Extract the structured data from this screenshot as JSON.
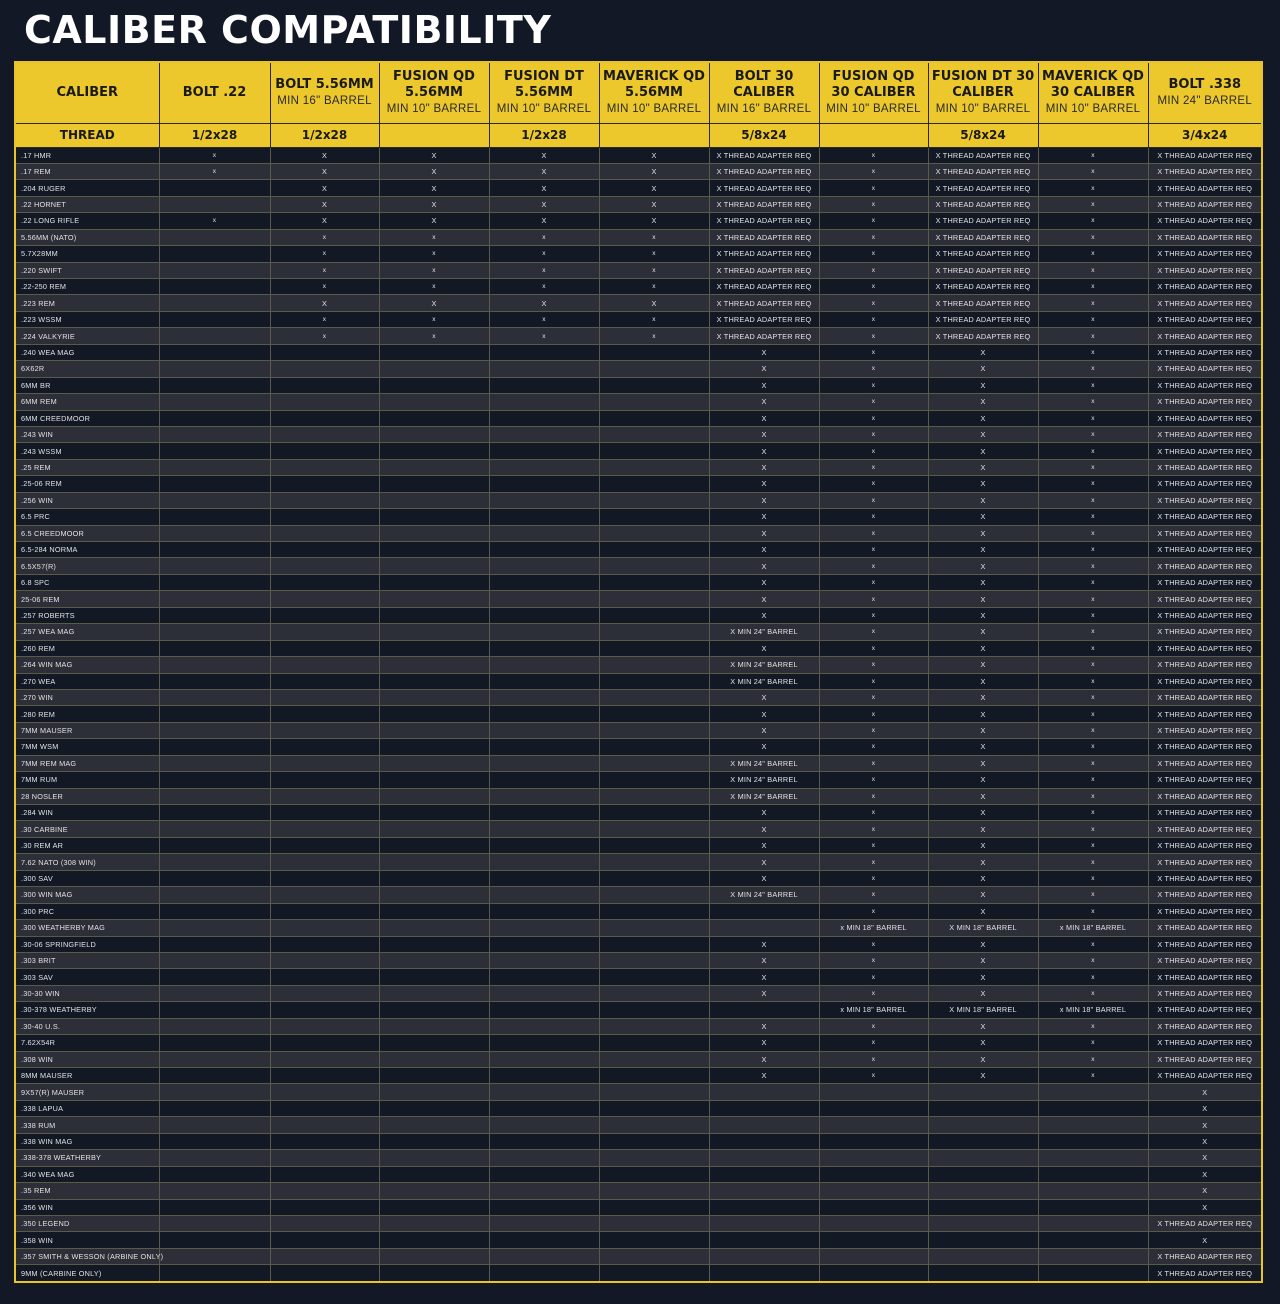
{
  "title": "CALIBER COMPATIBILITY",
  "table": {
    "columns": [
      {
        "name": "CALIBER",
        "sub": ""
      },
      {
        "name": "BOLT .22",
        "sub": ""
      },
      {
        "name": "BOLT 5.56MM",
        "sub": "MIN 16\" BARREL"
      },
      {
        "name": "FUSION QD 5.56MM",
        "sub": "MIN 10\" BARREL"
      },
      {
        "name": "FUSION DT 5.56MM",
        "sub": "MIN 10\" BARREL"
      },
      {
        "name": "MAVERICK QD 5.56MM",
        "sub": "MIN 10\" BARREL"
      },
      {
        "name": "BOLT 30 CALIBER",
        "sub": "MIN 16\" BARREL"
      },
      {
        "name": "FUSION QD 30 CALIBER",
        "sub": "MIN 10\" BARREL"
      },
      {
        "name": "FUSION DT 30 CALIBER",
        "sub": "MIN 10\" BARREL"
      },
      {
        "name": "MAVERICK QD 30 CALIBER",
        "sub": "MIN 10\" BARREL"
      },
      {
        "name": "BOLT .338",
        "sub": "MIN 24\" BARREL"
      }
    ],
    "thread_row": [
      "THREAD",
      "1/2x28",
      "1/2x28",
      "",
      "1/2x28",
      "",
      "5/8x24",
      "",
      "5/8x24",
      "",
      "3/4x24"
    ],
    "rows": [
      [
        ".17 HMR",
        "x",
        "X",
        "X",
        "X",
        "X",
        "X THREAD ADAPTER REQ",
        "x",
        "X THREAD ADAPTER REQ",
        "x",
        "X THREAD ADAPTER REQ"
      ],
      [
        ".17 REM",
        "x",
        "X",
        "X",
        "X",
        "X",
        "X THREAD ADAPTER REQ",
        "x",
        "X THREAD ADAPTER REQ",
        "x",
        "X THREAD ADAPTER REQ"
      ],
      [
        ".204 RUGER",
        "",
        "X",
        "X",
        "X",
        "X",
        "X THREAD ADAPTER REQ",
        "x",
        "X THREAD ADAPTER REQ",
        "x",
        "X THREAD ADAPTER REQ"
      ],
      [
        ".22 HORNET",
        "",
        "X",
        "X",
        "X",
        "X",
        "X THREAD ADAPTER REQ",
        "x",
        "X THREAD ADAPTER REQ",
        "x",
        "X THREAD ADAPTER REQ"
      ],
      [
        ".22 LONG RIFLE",
        "x",
        "X",
        "X",
        "X",
        "X",
        "X THREAD ADAPTER REQ",
        "x",
        "X THREAD ADAPTER REQ",
        "x",
        "X THREAD ADAPTER REQ"
      ],
      [
        "5.56MM (NATO)",
        "",
        "x",
        "x",
        "x",
        "x",
        "X THREAD ADAPTER REQ",
        "x",
        "X THREAD ADAPTER REQ",
        "x",
        "X THREAD ADAPTER REQ"
      ],
      [
        "5.7X28MM",
        "",
        "x",
        "x",
        "x",
        "x",
        "X THREAD ADAPTER REQ",
        "x",
        "X THREAD ADAPTER REQ",
        "x",
        "X THREAD ADAPTER REQ"
      ],
      [
        ".220 SWIFT",
        "",
        "x",
        "x",
        "x",
        "x",
        "X THREAD ADAPTER REQ",
        "x",
        "X THREAD ADAPTER REQ",
        "x",
        "X THREAD ADAPTER REQ"
      ],
      [
        ".22-250 REM",
        "",
        "x",
        "x",
        "x",
        "x",
        "X THREAD ADAPTER REQ",
        "x",
        "X THREAD ADAPTER REQ",
        "x",
        "X THREAD ADAPTER REQ"
      ],
      [
        ".223 REM",
        "",
        "X",
        "X",
        "X",
        "X",
        "X THREAD ADAPTER REQ",
        "x",
        "X THREAD ADAPTER REQ",
        "x",
        "X THREAD ADAPTER REQ"
      ],
      [
        ".223 WSSM",
        "",
        "x",
        "x",
        "x",
        "x",
        "X THREAD ADAPTER REQ",
        "x",
        "X THREAD ADAPTER REQ",
        "x",
        "X THREAD ADAPTER REQ"
      ],
      [
        ".224 VALKYRIE",
        "",
        "x",
        "x",
        "x",
        "x",
        "X THREAD ADAPTER REQ",
        "x",
        "X THREAD ADAPTER REQ",
        "x",
        "X THREAD ADAPTER REQ"
      ],
      [
        ".240 WEA MAG",
        "",
        "",
        "",
        "",
        "",
        "X",
        "x",
        "X",
        "x",
        "X THREAD ADAPTER REQ"
      ],
      [
        "6X62R",
        "",
        "",
        "",
        "",
        "",
        "X",
        "x",
        "X",
        "x",
        "X THREAD ADAPTER REQ"
      ],
      [
        "6MM BR",
        "",
        "",
        "",
        "",
        "",
        "X",
        "x",
        "X",
        "x",
        "X THREAD ADAPTER REQ"
      ],
      [
        "6MM REM",
        "",
        "",
        "",
        "",
        "",
        "X",
        "x",
        "X",
        "x",
        "X THREAD ADAPTER REQ"
      ],
      [
        "6MM CREEDMOOR",
        "",
        "",
        "",
        "",
        "",
        "X",
        "x",
        "X",
        "x",
        "X THREAD ADAPTER REQ"
      ],
      [
        ".243 WIN",
        "",
        "",
        "",
        "",
        "",
        "X",
        "x",
        "X",
        "x",
        "X THREAD ADAPTER REQ"
      ],
      [
        ".243 WSSM",
        "",
        "",
        "",
        "",
        "",
        "X",
        "x",
        "X",
        "x",
        "X THREAD ADAPTER REQ"
      ],
      [
        ".25  REM",
        "",
        "",
        "",
        "",
        "",
        "X",
        "x",
        "X",
        "x",
        "X THREAD ADAPTER REQ"
      ],
      [
        ".25-06 REM",
        "",
        "",
        "",
        "",
        "",
        "X",
        "x",
        "X",
        "x",
        "X THREAD ADAPTER REQ"
      ],
      [
        ".256 WIN",
        "",
        "",
        "",
        "",
        "",
        "X",
        "x",
        "X",
        "x",
        "X THREAD ADAPTER REQ"
      ],
      [
        "6.5 PRC",
        "",
        "",
        "",
        "",
        "",
        "X",
        "x",
        "X",
        "x",
        "X THREAD ADAPTER REQ"
      ],
      [
        "6.5 CREEDMOOR",
        "",
        "",
        "",
        "",
        "",
        "X",
        "x",
        "X",
        "x",
        "X THREAD ADAPTER REQ"
      ],
      [
        "6.5-284 NORMA",
        "",
        "",
        "",
        "",
        "",
        "X",
        "x",
        "X",
        "x",
        "X THREAD ADAPTER REQ"
      ],
      [
        "6.5X57(R)",
        "",
        "",
        "",
        "",
        "",
        "X",
        "x",
        "X",
        "x",
        "X THREAD ADAPTER REQ"
      ],
      [
        "6.8 SPC",
        "",
        "",
        "",
        "",
        "",
        "X",
        "x",
        "X",
        "x",
        "X THREAD ADAPTER REQ"
      ],
      [
        "25-06 REM",
        "",
        "",
        "",
        "",
        "",
        "X",
        "x",
        "X",
        "x",
        "X THREAD ADAPTER REQ"
      ],
      [
        ".257 ROBERTS",
        "",
        "",
        "",
        "",
        "",
        "X",
        "x",
        "X",
        "x",
        "X THREAD ADAPTER REQ"
      ],
      [
        ".257 WEA MAG",
        "",
        "",
        "",
        "",
        "",
        "X MIN 24\" BARREL",
        "x",
        "X",
        "x",
        "X THREAD ADAPTER REQ"
      ],
      [
        ".260 REM",
        "",
        "",
        "",
        "",
        "",
        "X",
        "x",
        "X",
        "x",
        "X THREAD ADAPTER REQ"
      ],
      [
        ".264 WIN MAG",
        "",
        "",
        "",
        "",
        "",
        "X MIN 24\" BARREL",
        "x",
        "X",
        "x",
        "X THREAD ADAPTER REQ"
      ],
      [
        ".270 WEA",
        "",
        "",
        "",
        "",
        "",
        "X MIN 24\" BARREL",
        "x",
        "X",
        "x",
        "X THREAD ADAPTER REQ"
      ],
      [
        ".270 WIN",
        "",
        "",
        "",
        "",
        "",
        "X",
        "x",
        "X",
        "x",
        "X THREAD ADAPTER REQ"
      ],
      [
        ".280 REM",
        "",
        "",
        "",
        "",
        "",
        "X",
        "x",
        "X",
        "x",
        "X THREAD ADAPTER REQ"
      ],
      [
        "7MM MAUSER",
        "",
        "",
        "",
        "",
        "",
        "X",
        "x",
        "X",
        "x",
        "X THREAD ADAPTER REQ"
      ],
      [
        "7MM WSM",
        "",
        "",
        "",
        "",
        "",
        "X",
        "x",
        "X",
        "x",
        "X THREAD ADAPTER REQ"
      ],
      [
        "7MM REM MAG",
        "",
        "",
        "",
        "",
        "",
        "X MIN 24\" BARREL",
        "x",
        "X",
        "x",
        "X THREAD ADAPTER REQ"
      ],
      [
        "7MM RUM",
        "",
        "",
        "",
        "",
        "",
        "X MIN 24\" BARREL",
        "x",
        "X",
        "x",
        "X THREAD ADAPTER REQ"
      ],
      [
        "28 NOSLER",
        "",
        "",
        "",
        "",
        "",
        "X MIN 24\" BARREL",
        "x",
        "X",
        "x",
        "X THREAD ADAPTER REQ"
      ],
      [
        ".284 WIN",
        "",
        "",
        "",
        "",
        "",
        "X",
        "x",
        "X",
        "x",
        "X THREAD ADAPTER REQ"
      ],
      [
        ".30 CARBINE",
        "",
        "",
        "",
        "",
        "",
        "X",
        "x",
        "X",
        "x",
        "X THREAD ADAPTER REQ"
      ],
      [
        ".30 REM AR",
        "",
        "",
        "",
        "",
        "",
        "X",
        "x",
        "X",
        "x",
        "X THREAD ADAPTER REQ"
      ],
      [
        "7.62 NATO (308 WIN)",
        "",
        "",
        "",
        "",
        "",
        "X",
        "x",
        "X",
        "x",
        "X THREAD ADAPTER REQ"
      ],
      [
        ".300 SAV",
        "",
        "",
        "",
        "",
        "",
        "X",
        "x",
        "X",
        "x",
        "X THREAD ADAPTER REQ"
      ],
      [
        ".300 WIN MAG",
        "",
        "",
        "",
        "",
        "",
        "X MIN 24\" BARREL",
        "x",
        "X",
        "x",
        "X THREAD ADAPTER REQ"
      ],
      [
        ".300 PRC",
        "",
        "",
        "",
        "",
        "",
        "",
        "x",
        "X",
        "x",
        "X THREAD ADAPTER REQ"
      ],
      [
        ".300 WEATHERBY MAG",
        "",
        "",
        "",
        "",
        "",
        "",
        "x MIN 18\" BARREL",
        "X MIN 18\" BARREL",
        "x MIN 18\" BARREL",
        "X THREAD ADAPTER REQ"
      ],
      [
        ".30-06 SPRINGFIELD",
        "",
        "",
        "",
        "",
        "",
        "X",
        "x",
        "X",
        "x",
        "X THREAD ADAPTER REQ"
      ],
      [
        ".303 BRIT",
        "",
        "",
        "",
        "",
        "",
        "X",
        "x",
        "X",
        "x",
        "X THREAD ADAPTER REQ"
      ],
      [
        ".303 SAV",
        "",
        "",
        "",
        "",
        "",
        "X",
        "x",
        "X",
        "x",
        "X THREAD ADAPTER REQ"
      ],
      [
        ".30-30 WIN",
        "",
        "",
        "",
        "",
        "",
        "X",
        "x",
        "X",
        "x",
        "X THREAD ADAPTER REQ"
      ],
      [
        ".30-378  WEATHERBY",
        "",
        "",
        "",
        "",
        "",
        "",
        "x MIN 18\" BARREL",
        "X MIN 18\" BARREL",
        "x MIN 18\" BARREL",
        "X THREAD ADAPTER REQ"
      ],
      [
        ".30-40 U.S.",
        "",
        "",
        "",
        "",
        "",
        "X",
        "x",
        "X",
        "x",
        "X THREAD ADAPTER REQ"
      ],
      [
        "7.62X54R",
        "",
        "",
        "",
        "",
        "",
        "X",
        "x",
        "X",
        "x",
        "X THREAD ADAPTER REQ"
      ],
      [
        ".308 WIN",
        "",
        "",
        "",
        "",
        "",
        "X",
        "x",
        "X",
        "x",
        "X THREAD ADAPTER REQ"
      ],
      [
        "8MM MAUSER",
        "",
        "",
        "",
        "",
        "",
        "X",
        "x",
        "X",
        "x",
        "X THREAD ADAPTER REQ"
      ],
      [
        "9X57(R) MAUSER",
        "",
        "",
        "",
        "",
        "",
        "",
        "",
        "",
        "",
        "X"
      ],
      [
        ".338 LAPUA",
        "",
        "",
        "",
        "",
        "",
        "",
        "",
        "",
        "",
        "X"
      ],
      [
        ".338 RUM",
        "",
        "",
        "",
        "",
        "",
        "",
        "",
        "",
        "",
        "X"
      ],
      [
        ".338 WIN MAG",
        "",
        "",
        "",
        "",
        "",
        "",
        "",
        "",
        "",
        "X"
      ],
      [
        ".338-378 WEATHERBY",
        "",
        "",
        "",
        "",
        "",
        "",
        "",
        "",
        "",
        "X"
      ],
      [
        ".340 WEA MAG",
        "",
        "",
        "",
        "",
        "",
        "",
        "",
        "",
        "",
        "X"
      ],
      [
        ".35  REM",
        "",
        "",
        "",
        "",
        "",
        "",
        "",
        "",
        "",
        "X"
      ],
      [
        ".356 WIN",
        "",
        "",
        "",
        "",
        "",
        "",
        "",
        "",
        "",
        "X"
      ],
      [
        ".350 LEGEND",
        "",
        "",
        "",
        "",
        "",
        "",
        "",
        "",
        "",
        "X THREAD ADAPTER REQ"
      ],
      [
        ".358 WIN",
        "",
        "",
        "",
        "",
        "",
        "",
        "",
        "",
        "",
        "X"
      ],
      [
        ".357 SMITH & WESSON (ARBINE ONLY)",
        "",
        "",
        "",
        "",
        "",
        "",
        "",
        "",
        "",
        "X THREAD ADAPTER REQ"
      ],
      [
        "9MM (CARBINE ONLY)",
        "",
        "",
        "",
        "",
        "",
        "",
        "",
        "",
        "",
        "X THREAD ADAPTER REQ"
      ]
    ]
  },
  "colors": {
    "background": "#121826",
    "header_yellow": "#ecc82c",
    "row_dark": "#131825",
    "row_light": "#2d2f38",
    "text": "#e2e2e2"
  }
}
